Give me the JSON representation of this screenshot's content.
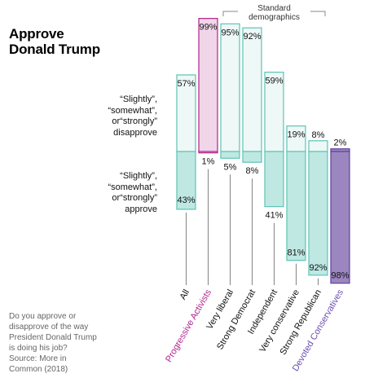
{
  "title_lines": [
    "Approve",
    "Donald Trump"
  ],
  "note_disapprove": [
    "“Slightly”,",
    "“somewhat”,",
    "or“strongly”",
    "disapprove"
  ],
  "note_approve": [
    "“Slightly”,",
    "“somewhat”,",
    "or“strongly”",
    "approve"
  ],
  "footnote": [
    "Do you approve or",
    "disapprove of the way",
    "President Donald Trump",
    "is doing his job?",
    "Source: More in",
    "Common (2018)"
  ],
  "bracket_label": [
    "Standard",
    "demographics"
  ],
  "colors": {
    "teal_stroke": "#5cc3b5",
    "teal_light": "#eef8f7",
    "teal_fill": "#bfe8e3",
    "pink_stroke": "#b0238c",
    "pink_fill": "#f0d6e8",
    "purple_stroke": "#5e3f9c",
    "purple_fill": "#9b86bf",
    "progressive_label": "#b0238c",
    "devoted_label": "#6a4cb0"
  },
  "chart_data": {
    "type": "bar",
    "categories": [
      "All",
      "Progressive Activists",
      "Very liberal",
      "Strong Democrat",
      "Independent",
      "Very conservative",
      "Strong Republican",
      "Devoted Conservatives"
    ],
    "series": [
      {
        "name": "disapprove",
        "values": [
          57,
          99,
          95,
          92,
          59,
          19,
          8,
          2
        ]
      },
      {
        "name": "approve",
        "values": [
          43,
          1,
          5,
          8,
          41,
          81,
          92,
          98
        ]
      }
    ],
    "highlight": {
      "Progressive Activists": "pink",
      "Devoted Conservatives": "purple"
    },
    "ylim": [
      0,
      100
    ]
  }
}
